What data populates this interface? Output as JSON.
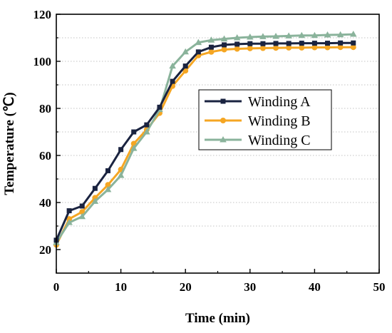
{
  "chart_data": {
    "type": "line",
    "xlabel": "Time (min)",
    "ylabel": "Temperature (℃)",
    "xlim": [
      0,
      50
    ],
    "ylim": [
      10,
      120
    ],
    "x_ticks": [
      "0",
      "10",
      "20",
      "30",
      "40",
      "50"
    ],
    "y_ticks": [
      "20",
      "40",
      "60",
      "80",
      "100",
      "120"
    ],
    "grid": "horizontal dotted",
    "legend_position": "center-right",
    "x": [
      0,
      2,
      4,
      6,
      8,
      10,
      12,
      14,
      16,
      18,
      20,
      22,
      24,
      26,
      28,
      30,
      32,
      34,
      36,
      38,
      40,
      42,
      44,
      46
    ],
    "series": [
      {
        "name": "Winding A",
        "color": "#1a2340",
        "marker": "square",
        "values": [
          24,
          36.5,
          38.5,
          46,
          53.5,
          62.5,
          70,
          73,
          80.5,
          91.5,
          98,
          104,
          106,
          107,
          107.3,
          107.5,
          107.5,
          107.6,
          107.6,
          107.7,
          107.7,
          107.7,
          107.8,
          107.8
        ]
      },
      {
        "name": "Winding B",
        "color": "#f5a623",
        "marker": "circle",
        "values": [
          22,
          33,
          36,
          42,
          47.5,
          54,
          65,
          71,
          78,
          89.5,
          96,
          102.5,
          104,
          105,
          105.3,
          105.5,
          105.6,
          105.7,
          105.8,
          105.8,
          105.9,
          105.9,
          106,
          106
        ]
      },
      {
        "name": "Winding C",
        "color": "#8ab39b",
        "marker": "triangle",
        "values": [
          23,
          31.5,
          34,
          40.5,
          45.5,
          51.5,
          63,
          70,
          79.5,
          98,
          104,
          108,
          109,
          109.5,
          110,
          110.3,
          110.5,
          110.6,
          110.8,
          111,
          111,
          111.2,
          111.3,
          111.5
        ]
      }
    ]
  }
}
